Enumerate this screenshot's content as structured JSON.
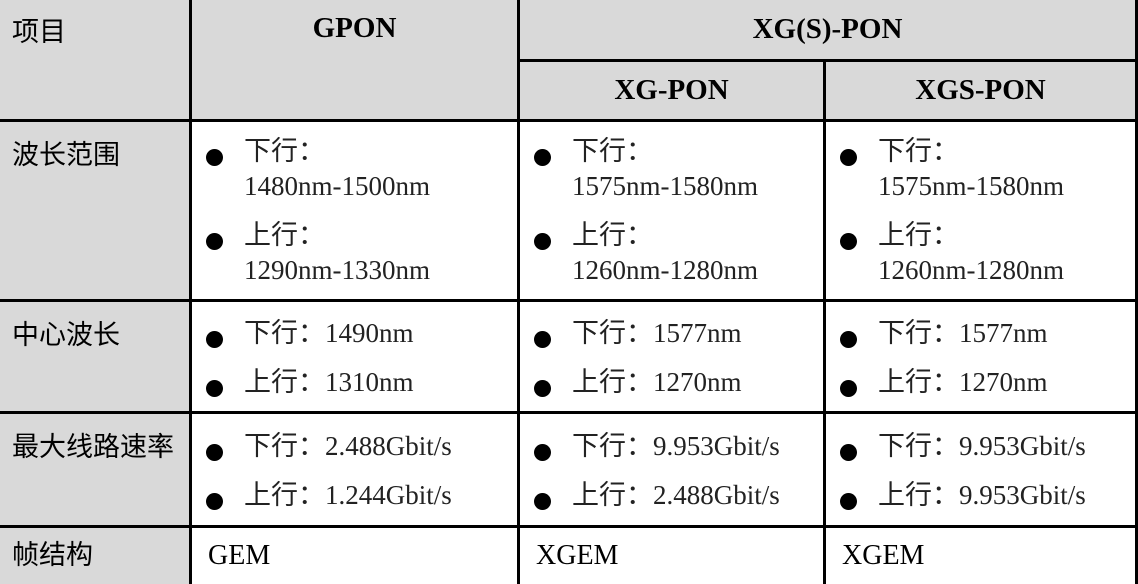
{
  "table": {
    "headers": {
      "item": "项目",
      "gpon": "GPON",
      "xgs_group": "XG(S)-PON",
      "xg_pon": "XG-PON",
      "xgs_pon": "XGS-PON"
    },
    "rows": [
      {
        "label": "波长范围",
        "gpon": [
          {
            "line1": "下行：",
            "line2": "1480nm-1500nm"
          },
          {
            "line1": "上行：",
            "line2": "1290nm-1330nm"
          }
        ],
        "xg_pon": [
          {
            "line1": "下行：",
            "line2": "1575nm-1580nm"
          },
          {
            "line1": "上行：",
            "line2": "1260nm-1280nm"
          }
        ],
        "xgs_pon": [
          {
            "line1": "下行：",
            "line2": "1575nm-1580nm"
          },
          {
            "line1": "上行：",
            "line2": "1260nm-1280nm"
          }
        ]
      },
      {
        "label": "中心波长",
        "gpon": [
          "下行：1490nm",
          "上行：1310nm"
        ],
        "xg_pon": [
          "下行：1577nm",
          "上行：1270nm"
        ],
        "xgs_pon": [
          "下行：1577nm",
          "上行：1270nm"
        ]
      },
      {
        "label": "最大线路速率",
        "gpon": [
          "下行：2.488Gbit/s",
          "上行：1.244Gbit/s"
        ],
        "xg_pon": [
          "下行：9.953Gbit/s",
          "上行：2.488Gbit/s"
        ],
        "xgs_pon": [
          "下行：9.953Gbit/s",
          "上行：9.953Gbit/s"
        ]
      },
      {
        "label": "帧结构",
        "gpon": "GEM",
        "xg_pon": "XGEM",
        "xgs_pon": "XGEM"
      }
    ]
  },
  "colors": {
    "header_bg": "#d9d9d9",
    "border": "#000000",
    "text": "#000000"
  }
}
